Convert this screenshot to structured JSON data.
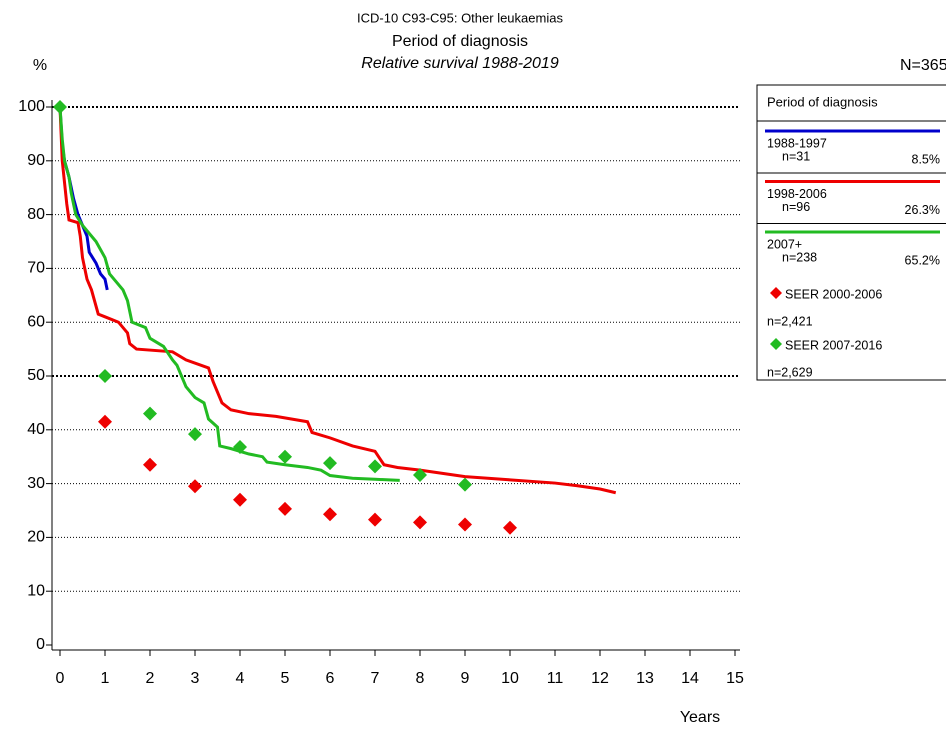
{
  "chart_data": {
    "type": "line",
    "title": "ICD-10 C93-C95: Other leukaemias",
    "subtitle": "Period of diagnosis",
    "subtitle2": "Relative survival 1988-2019",
    "ylabel": "%",
    "xlabel": "Years",
    "total": "N=365",
    "legend_title": "Period of diagnosis",
    "xlim": [
      0,
      15
    ],
    "ylim": [
      0,
      100
    ],
    "xticks": [
      0,
      1,
      2,
      3,
      4,
      5,
      6,
      7,
      8,
      9,
      10,
      11,
      12,
      13,
      14,
      15
    ],
    "yticks": [
      0,
      10,
      20,
      30,
      40,
      50,
      60,
      70,
      80,
      90,
      100
    ],
    "grid": true,
    "bold_grid": [
      50,
      100
    ],
    "series": [
      {
        "name": "1988-1997",
        "n_label": "n=31",
        "share_label": "8.5%",
        "color": "#0000cc",
        "marker": "none",
        "x": [
          0,
          0.05,
          0.1,
          0.2,
          0.3,
          0.4,
          0.5,
          0.6,
          0.65,
          0.8,
          0.9,
          1.0,
          1.05
        ],
        "values": [
          100,
          93,
          90,
          87,
          83,
          80,
          78,
          76,
          73,
          71,
          69,
          68,
          66
        ]
      },
      {
        "name": "1998-2006",
        "n_label": "n=96",
        "share_label": "26.3%",
        "color": "#ee0000",
        "marker": "none",
        "x": [
          0,
          0.05,
          0.1,
          0.15,
          0.2,
          0.4,
          0.45,
          0.5,
          0.6,
          0.7,
          0.8,
          0.85,
          1.0,
          1.3,
          1.5,
          1.55,
          1.7,
          2.5,
          2.8,
          3.3,
          3.4,
          3.6,
          3.8,
          4.2,
          4.8,
          5.5,
          5.6,
          6,
          6.5,
          7,
          7.2,
          7.5,
          8,
          9,
          10,
          11,
          11.5,
          12,
          12.35
        ],
        "values": [
          100,
          90,
          86,
          82,
          79,
          78.5,
          76,
          72,
          68,
          66,
          63,
          61.5,
          61,
          60,
          58,
          56,
          55,
          54.5,
          53,
          51.5,
          49,
          45,
          43.7,
          43,
          42.5,
          41.5,
          39.5,
          38.5,
          37,
          36,
          33.5,
          33,
          32.5,
          31.3,
          30.7,
          30.1,
          29.6,
          29,
          28.3
        ]
      },
      {
        "name": "2007+",
        "n_label": "n=238",
        "share_label": "65.2%",
        "color": "#22bb22",
        "marker": "none",
        "x": [
          0,
          0.05,
          0.1,
          0.2,
          0.25,
          0.35,
          0.5,
          0.8,
          1.0,
          1.1,
          1.2,
          1.4,
          1.5,
          1.55,
          1.6,
          1.9,
          2.0,
          2.3,
          2.5,
          2.6,
          2.8,
          3.0,
          3.2,
          3.3,
          3.5,
          3.55,
          3.8,
          4.2,
          4.5,
          4.6,
          5,
          5.5,
          5.8,
          6,
          6.5,
          7,
          7.55
        ],
        "values": [
          100,
          94,
          90,
          87,
          84,
          80,
          78,
          75,
          72,
          69,
          68,
          66,
          64,
          62,
          60,
          59,
          57,
          55.5,
          53,
          52,
          48,
          46,
          45,
          42,
          40.5,
          37,
          36.5,
          35.5,
          35,
          34,
          33.5,
          33,
          32.5,
          31.5,
          31,
          30.8,
          30.6
        ]
      },
      {
        "name": "SEER 2000-2006",
        "n_label": "n=2,421",
        "color": "#ee0000",
        "marker": "diamond",
        "x": [
          1,
          2,
          3,
          4,
          5,
          6,
          7,
          8,
          9,
          10
        ],
        "values": [
          41.5,
          33.5,
          29.5,
          27,
          25.3,
          24.3,
          23.3,
          22.8,
          22.4,
          21.8
        ]
      },
      {
        "name": "SEER 2007-2016",
        "n_label": "n=2,629",
        "color": "#22bb22",
        "marker": "diamond",
        "x": [
          0,
          1,
          2,
          3,
          4,
          5,
          6,
          7,
          8,
          9
        ],
        "values": [
          100,
          50,
          43,
          39.2,
          36.8,
          35,
          33.8,
          33.2,
          31.6,
          29.8
        ]
      }
    ]
  }
}
